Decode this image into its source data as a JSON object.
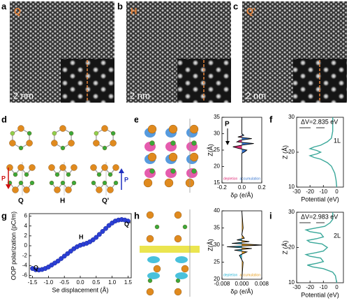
{
  "panels": {
    "letters": [
      "a",
      "b",
      "c",
      "d",
      "e",
      "f",
      "g",
      "h",
      "i"
    ],
    "images": [
      {
        "label": "Q",
        "scale": "2 nm"
      },
      {
        "label": "H",
        "scale": "2 nm"
      },
      {
        "label": "Q'",
        "scale": "2 nm"
      }
    ],
    "structures": {
      "labels": [
        "Q",
        "H",
        "Q'"
      ],
      "arrows": [
        "P",
        "P"
      ],
      "e_arrow": "P"
    }
  },
  "chart_data": [
    {
      "type": "area",
      "ylabel": "Z(Å)",
      "xlabel": "δρ (e/Å)",
      "xlim": [
        -0.2,
        0.2
      ],
      "xticks": [
        -0.2,
        {
          "value": 0,
          "label": "0.0"
        },
        0.2
      ],
      "ylim": [
        15,
        35
      ],
      "yticks": [
        15,
        20,
        25,
        30,
        35
      ],
      "z": [
        15,
        20,
        24,
        24.5,
        25,
        25.5,
        26,
        26.5,
        27,
        27.5,
        28,
        28.5,
        29,
        29.5,
        30,
        31,
        35
      ],
      "values": [
        0,
        0,
        0,
        0.03,
        0.05,
        -0.03,
        -0.09,
        0.0,
        0.12,
        -0.05,
        -0.02,
        0.1,
        -0.04,
        0.02,
        0,
        0,
        0
      ],
      "line_color": "#000000",
      "fills": [
        {
          "name": "depletion",
          "color": "#e0307a"
        },
        {
          "name": "accumulation",
          "color": "#3a78d0"
        }
      ]
    },
    {
      "type": "line",
      "ylabel": "Z (Å)",
      "xlabel": "Potential (eV)",
      "xlim": [
        -30,
        5
      ],
      "xticks": [
        -30,
        -20,
        -10,
        0
      ],
      "ylim": [
        10,
        30
      ],
      "yticks": [
        10,
        20,
        30
      ],
      "z": [
        10,
        12,
        14,
        16,
        17,
        18,
        18.5,
        19,
        19.5,
        20,
        20.5,
        21,
        21.5,
        22,
        23,
        24,
        26,
        28,
        30
      ],
      "values": [
        0,
        -0.5,
        -1.5,
        -4,
        -7,
        -12,
        -17,
        -20,
        -15,
        -12,
        -15,
        -20,
        -17,
        -12,
        -7,
        -4,
        -3,
        -3,
        -3
      ],
      "line_color": "#3aa89a",
      "annotations": [
        "ΔV=2.835 eV",
        "1L"
      ]
    },
    {
      "type": "scatter",
      "xlabel": "Se displacement (Å)",
      "ylabel": "OOP polarization (pC/m)",
      "xlim": [
        -1.6,
        1.6
      ],
      "xticks": [
        -1.5,
        {
          "value": -1,
          "label": "-1.0"
        },
        -0.5,
        {
          "value": 0,
          "label": "0.0"
        },
        0.5,
        {
          "value": 1,
          "label": "1.0"
        },
        1.5
      ],
      "ylim": [
        -6.5,
        6.5
      ],
      "yticks": [
        -6,
        -4,
        -2,
        0,
        2,
        4,
        6
      ],
      "x": [
        -1.5,
        -1.4,
        -1.3,
        -1.2,
        -1.1,
        -1.0,
        -0.9,
        -0.8,
        -0.7,
        -0.6,
        -0.5,
        -0.4,
        -0.3,
        -0.2,
        -0.1,
        0,
        0.1,
        0.2,
        0.3,
        0.4,
        0.5,
        0.6,
        0.7,
        0.8,
        0.9,
        1.0,
        1.1,
        1.2,
        1.3,
        1.4,
        1.5
      ],
      "values": [
        -4.6,
        -4.85,
        -4.9,
        -4.8,
        -4.6,
        -4.3,
        -3.9,
        -3.5,
        -3.1,
        -2.6,
        -2.1,
        -1.6,
        -1.1,
        -0.6,
        -0.2,
        0.1,
        0.3,
        0.5,
        0.8,
        1.2,
        1.7,
        2.3,
        2.9,
        3.5,
        4.1,
        4.6,
        5.0,
        5.2,
        5.3,
        5.2,
        5.0
      ],
      "color": "#2b3fd6",
      "annotations": [
        "Q",
        "H",
        "Q'"
      ]
    },
    {
      "type": "area",
      "ylabel": "Z(Å)",
      "xlabel": "δρ (e/Å)",
      "xlim": [
        -0.008,
        0.008
      ],
      "xticks": [
        -0.008,
        {
          "value": 0,
          "label": "0.000"
        },
        0.008
      ],
      "ylim": [
        20,
        40
      ],
      "yticks": [
        20,
        25,
        30,
        35,
        40
      ],
      "z": [
        20,
        25,
        27,
        28,
        28.5,
        29,
        29.5,
        30,
        30.5,
        31,
        31.5,
        32,
        33,
        35,
        40
      ],
      "values": [
        0,
        0.0005,
        -0.001,
        0.002,
        -0.003,
        0.004,
        -0.006,
        0.008,
        -0.004,
        0.003,
        -0.002,
        0.001,
        0,
        0.0005,
        0
      ],
      "line_color": "#000000",
      "fills": [
        {
          "name": "depletion",
          "color": "#29b6d6"
        },
        {
          "name": "accumulation",
          "color": "#e8a020"
        }
      ]
    },
    {
      "type": "line",
      "ylabel": "Z (Å)",
      "xlabel": "Potential (eV)",
      "xlim": [
        -30,
        5
      ],
      "xticks": [
        -30,
        -20,
        -10,
        0
      ],
      "ylim": [
        10,
        30
      ],
      "yticks": [
        10,
        20,
        30
      ],
      "z": [
        10,
        12,
        13,
        14,
        14.5,
        15,
        15.5,
        16,
        17,
        17.5,
        18,
        18.5,
        19,
        20,
        21,
        21.5,
        22,
        22.5,
        23,
        24,
        24.5,
        25,
        25.5,
        26,
        27,
        28,
        30
      ],
      "values": [
        0,
        -1,
        -3,
        -10,
        -18,
        -22,
        -15,
        -10,
        -12,
        -20,
        -23,
        -16,
        -10,
        -7,
        -11,
        -20,
        -22,
        -15,
        -10,
        -12,
        -20,
        -23,
        -16,
        -9,
        -5,
        -3,
        -3
      ],
      "line_color": "#3aa89a",
      "annotations": [
        "ΔV=2.983 eV",
        "2L"
      ]
    }
  ]
}
